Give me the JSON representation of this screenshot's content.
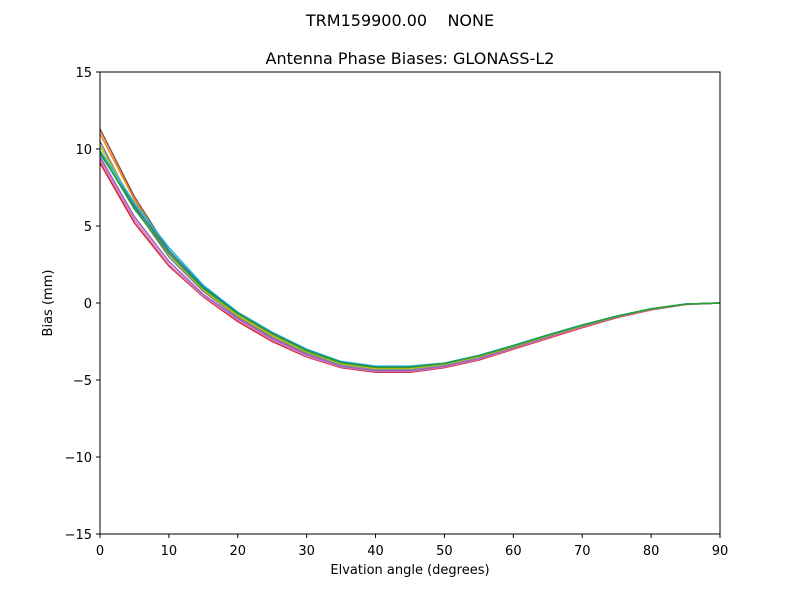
{
  "chart_data": {
    "type": "line",
    "suptitle": "TRM159900.00    NONE",
    "title": "Antenna Phase Biases: GLONASS-L2",
    "xlabel": "Elvation angle (degrees)",
    "ylabel": "Bias (mm)",
    "xlim": [
      0,
      90
    ],
    "ylim": [
      -15,
      15
    ],
    "xticks": [
      0,
      10,
      20,
      30,
      40,
      50,
      60,
      70,
      80,
      90
    ],
    "yticks": [
      -15,
      -10,
      -5,
      0,
      5,
      10,
      15
    ],
    "grid": false,
    "legend": "none",
    "x": [
      0,
      5,
      10,
      15,
      20,
      25,
      30,
      35,
      40,
      45,
      50,
      55,
      60,
      65,
      70,
      75,
      80,
      85,
      90
    ],
    "series": [
      {
        "color": "#d62728",
        "values": [
          9.1,
          5.2,
          2.4,
          0.4,
          -1.2,
          -2.5,
          -3.5,
          -4.2,
          -4.5,
          -4.5,
          -4.2,
          -3.7,
          -3.0,
          -2.3,
          -1.6,
          -0.95,
          -0.45,
          -0.1,
          0.0
        ]
      },
      {
        "color": "#e377c2",
        "values": [
          9.3,
          5.4,
          2.5,
          0.45,
          -1.1,
          -2.4,
          -3.45,
          -4.15,
          -4.45,
          -4.45,
          -4.15,
          -3.65,
          -2.95,
          -2.25,
          -1.55,
          -0.92,
          -0.42,
          -0.1,
          0.0
        ]
      },
      {
        "color": "#9467bd",
        "values": [
          9.5,
          5.6,
          2.7,
          0.55,
          -1.0,
          -2.3,
          -3.35,
          -4.1,
          -4.4,
          -4.4,
          -4.1,
          -3.6,
          -2.9,
          -2.2,
          -1.5,
          -0.9,
          -0.4,
          -0.08,
          0.0
        ]
      },
      {
        "color": "#7f7f7f",
        "values": [
          10.5,
          6.2,
          3.0,
          0.75,
          -0.9,
          -2.2,
          -3.25,
          -4.0,
          -4.3,
          -4.3,
          -4.0,
          -3.5,
          -2.85,
          -2.15,
          -1.48,
          -0.88,
          -0.4,
          -0.08,
          0.0
        ]
      },
      {
        "color": "#8c564b",
        "values": [
          11.3,
          6.9,
          3.4,
          0.95,
          -0.75,
          -2.05,
          -3.1,
          -3.9,
          -4.2,
          -4.2,
          -3.95,
          -3.45,
          -2.8,
          -2.1,
          -1.45,
          -0.86,
          -0.38,
          -0.07,
          0.0
        ]
      },
      {
        "color": "#ff7f0e",
        "values": [
          11.0,
          6.7,
          3.3,
          0.9,
          -0.8,
          -2.1,
          -3.15,
          -3.92,
          -4.22,
          -4.22,
          -3.97,
          -3.47,
          -2.82,
          -2.12,
          -1.46,
          -0.87,
          -0.39,
          -0.07,
          0.0
        ]
      },
      {
        "color": "#bcbd22",
        "values": [
          10.2,
          6.4,
          3.2,
          0.85,
          -0.82,
          -2.12,
          -3.17,
          -3.95,
          -4.25,
          -4.25,
          -3.98,
          -3.48,
          -2.83,
          -2.13,
          -1.47,
          -0.87,
          -0.39,
          -0.07,
          0.0
        ]
      },
      {
        "color": "#17becf",
        "values": [
          9.9,
          6.5,
          3.6,
          1.15,
          -0.6,
          -1.9,
          -3.0,
          -3.8,
          -4.1,
          -4.1,
          -3.9,
          -3.4,
          -2.75,
          -2.07,
          -1.42,
          -0.85,
          -0.37,
          -0.07,
          0.0
        ]
      },
      {
        "color": "#1f77b4",
        "values": [
          9.7,
          6.3,
          3.4,
          1.05,
          -0.65,
          -1.95,
          -3.05,
          -3.85,
          -4.15,
          -4.15,
          -3.92,
          -3.42,
          -2.78,
          -2.09,
          -1.44,
          -0.86,
          -0.38,
          -0.07,
          0.0
        ]
      },
      {
        "color": "#2ca02c",
        "values": [
          9.8,
          6.1,
          3.2,
          0.95,
          -0.7,
          -2.0,
          -3.1,
          -3.88,
          -4.18,
          -4.18,
          -3.93,
          -3.43,
          -2.79,
          -2.1,
          -1.45,
          -0.86,
          -0.38,
          -0.07,
          0.0
        ]
      }
    ]
  }
}
